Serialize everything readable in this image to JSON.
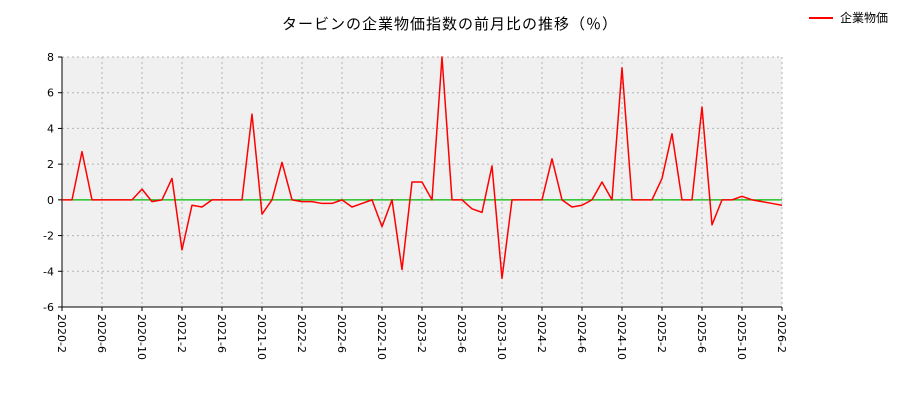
{
  "chart_data": {
    "type": "line",
    "title": "タービンの企業物価指数の前月比の推移（％）",
    "legend_position": "top-right",
    "grid": true,
    "ylim": [
      -6,
      8
    ],
    "yticks": [
      -6,
      -4,
      -2,
      0,
      2,
      4,
      6,
      8
    ],
    "xtick_every": 4,
    "xtick_labels": [
      "2020-2",
      "2020-6",
      "2020-10",
      "2021-2",
      "2021-6",
      "2021-10",
      "2022-2",
      "2022-6",
      "2022-10",
      "2023-2",
      "2023-6",
      "2023-10",
      "2024-2",
      "2024-6",
      "2024-10",
      "2025-2",
      "2025-6",
      "2025-10",
      "2026-2"
    ],
    "zero_line_color": "#00bb00",
    "x": [
      "2020-2",
      "2020-3",
      "2020-4",
      "2020-5",
      "2020-6",
      "2020-7",
      "2020-8",
      "2020-9",
      "2020-10",
      "2020-11",
      "2020-12",
      "2021-1",
      "2021-2",
      "2021-3",
      "2021-4",
      "2021-5",
      "2021-6",
      "2021-7",
      "2021-8",
      "2021-9",
      "2021-10",
      "2021-11",
      "2021-12",
      "2022-1",
      "2022-2",
      "2022-3",
      "2022-4",
      "2022-5",
      "2022-6",
      "2022-7",
      "2022-8",
      "2022-9",
      "2022-10",
      "2022-11",
      "2022-12",
      "2023-1",
      "2023-2",
      "2023-3",
      "2023-4",
      "2023-5",
      "2023-6",
      "2023-7",
      "2023-8",
      "2023-9",
      "2023-10",
      "2023-11",
      "2023-12",
      "2024-1",
      "2024-2",
      "2024-3",
      "2024-4",
      "2024-5",
      "2024-6",
      "2024-7",
      "2024-8",
      "2024-9",
      "2024-10",
      "2024-11",
      "2024-12",
      "2025-1",
      "2025-2",
      "2025-3",
      "2025-4",
      "2025-5",
      "2025-6",
      "2025-7",
      "2025-8",
      "2025-9",
      "2025-10",
      "2025-11",
      "2025-12",
      "2026-1",
      "2026-2"
    ],
    "series": [
      {
        "name": "企業物価",
        "color": "#ff0000",
        "values": [
          0,
          0,
          2.7,
          0,
          0,
          0,
          0,
          0,
          0.6,
          -0.1,
          0,
          1.2,
          -2.8,
          -0.3,
          -0.4,
          0,
          0,
          0,
          0,
          4.8,
          -0.8,
          0,
          2.1,
          0,
          -0.1,
          -0.1,
          -0.2,
          -0.2,
          0,
          -0.4,
          -0.2,
          0,
          -1.5,
          0,
          -3.9,
          1.0,
          1.0,
          0,
          8.0,
          0,
          0,
          -0.5,
          -0.7,
          1.9,
          -4.4,
          0,
          0,
          0,
          0,
          2.3,
          0,
          -0.4,
          -0.3,
          0,
          1.0,
          0,
          7.4,
          0,
          0,
          0,
          1.2,
          3.7,
          0,
          0,
          5.2,
          -1.4,
          0,
          0,
          0.2,
          0,
          -0.1,
          -0.2,
          -0.3
        ]
      }
    ]
  }
}
